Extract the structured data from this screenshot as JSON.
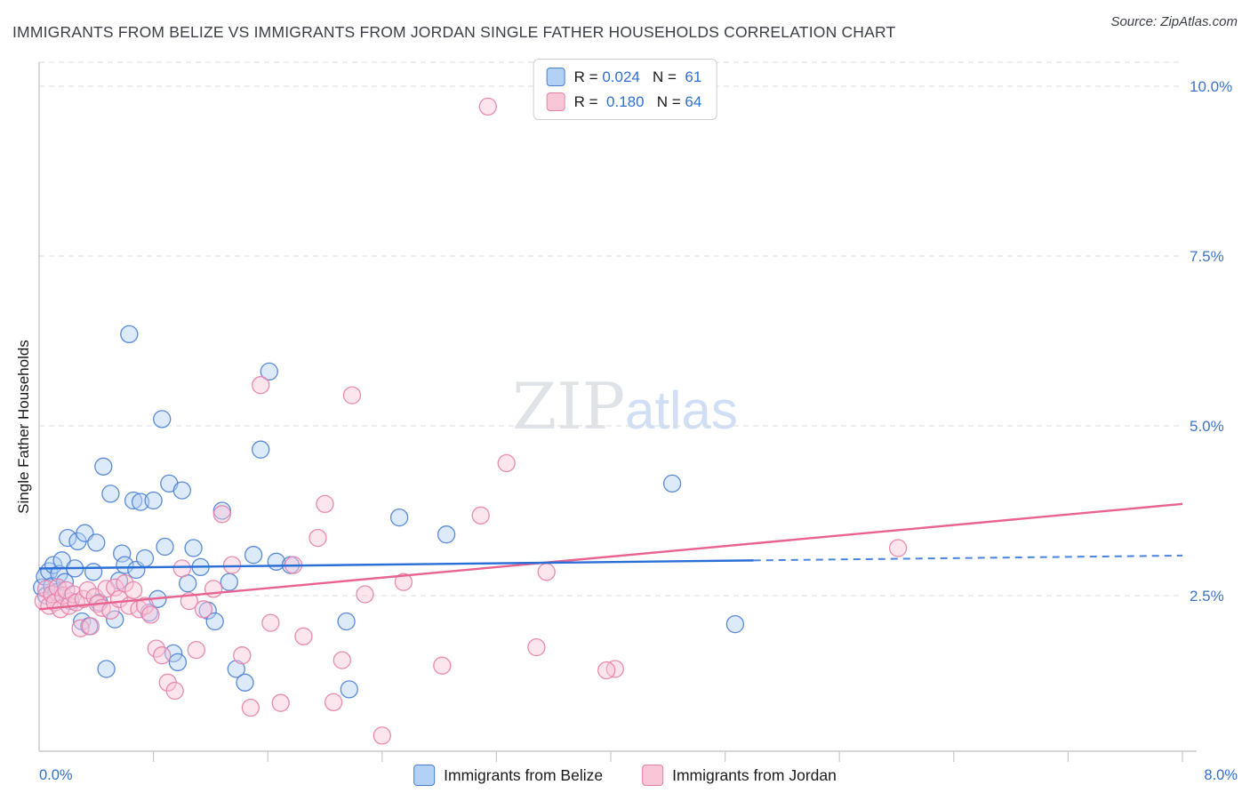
{
  "title": "IMMIGRANTS FROM BELIZE VS IMMIGRANTS FROM JORDAN SINGLE FATHER HOUSEHOLDS CORRELATION CHART",
  "source": "Source: ZipAtlas.com",
  "watermark": {
    "part1": "ZIP",
    "part2": "atlas"
  },
  "legend": {
    "rows": [
      {
        "series": "belize",
        "r_label": "R = ",
        "r_value": "0.024",
        "n_label": "   N = ",
        "n_value": " 61"
      },
      {
        "series": "jordan",
        "r_label": "R = ",
        "r_value": " 0.180",
        "n_label": "   N = ",
        "n_value": "64"
      }
    ]
  },
  "axes": {
    "y_title": "Single Father Households",
    "x_min_label": "0.0%",
    "x_max_label": "8.0%",
    "y_tick_labels": [
      "10.0%",
      "7.5%",
      "5.0%",
      "2.5%"
    ],
    "y_tick_values": [
      10,
      7.5,
      5,
      2.5
    ]
  },
  "bottom_legend": [
    {
      "series": "belize",
      "label": "Immigrants from Belize"
    },
    {
      "series": "jordan",
      "label": "Immigrants from Jordan"
    }
  ],
  "colors": {
    "belize_fill": "#b3d0f5",
    "belize_stroke": "#4a7fd4",
    "jordan_fill": "#f9c6d8",
    "jordan_stroke": "#e87fa8",
    "belize_trend": "#2a6fd6",
    "jordan_trend": "#e8638f",
    "tick_label": "#3d74c7",
    "grid": "#dcdcdc",
    "axis": "#c9c9c9"
  },
  "chart_data": {
    "type": "scatter",
    "title": "IMMIGRANTS FROM BELIZE VS IMMIGRANTS FROM JORDAN SINGLE FATHER HOUSEHOLDS CORRELATION CHART",
    "xlabel": "",
    "ylabel": "Single Father Households",
    "xlim": [
      0,
      8
    ],
    "ylim": [
      0,
      10.5
    ],
    "x_unit": "%",
    "y_unit": "%",
    "gridlines": [
      2.5,
      5,
      7.5,
      10
    ],
    "x_tick_step": 0.8,
    "legend_position": "bottom",
    "series": [
      {
        "name": "Immigrants from Belize",
        "R": 0.024,
        "N": 61,
        "points": [
          [
            0.02,
            2.62
          ],
          [
            0.04,
            2.78
          ],
          [
            0.05,
            2.5
          ],
          [
            0.07,
            2.86
          ],
          [
            0.09,
            2.64
          ],
          [
            0.1,
            2.95
          ],
          [
            0.12,
            2.55
          ],
          [
            0.14,
            2.82
          ],
          [
            0.16,
            3.02
          ],
          [
            0.18,
            2.7
          ],
          [
            0.2,
            3.35
          ],
          [
            0.22,
            2.42
          ],
          [
            0.25,
            2.9
          ],
          [
            0.27,
            3.3
          ],
          [
            0.3,
            2.12
          ],
          [
            0.32,
            3.42
          ],
          [
            0.35,
            2.05
          ],
          [
            0.38,
            2.85
          ],
          [
            0.4,
            3.28
          ],
          [
            0.42,
            2.4
          ],
          [
            0.45,
            4.4
          ],
          [
            0.47,
            1.42
          ],
          [
            0.5,
            4.0
          ],
          [
            0.53,
            2.15
          ],
          [
            0.56,
            2.72
          ],
          [
            0.58,
            3.12
          ],
          [
            0.6,
            2.95
          ],
          [
            0.63,
            6.35
          ],
          [
            0.66,
            3.9
          ],
          [
            0.68,
            2.88
          ],
          [
            0.71,
            3.88
          ],
          [
            0.74,
            3.05
          ],
          [
            0.77,
            2.25
          ],
          [
            0.8,
            3.9
          ],
          [
            0.83,
            2.45
          ],
          [
            0.86,
            5.1
          ],
          [
            0.88,
            3.22
          ],
          [
            0.91,
            4.15
          ],
          [
            0.94,
            1.65
          ],
          [
            0.97,
            1.52
          ],
          [
            1.0,
            4.05
          ],
          [
            1.04,
            2.68
          ],
          [
            1.08,
            3.2
          ],
          [
            1.13,
            2.92
          ],
          [
            1.18,
            2.28
          ],
          [
            1.23,
            2.12
          ],
          [
            1.28,
            3.75
          ],
          [
            1.33,
            2.7
          ],
          [
            1.38,
            1.42
          ],
          [
            1.44,
            1.22
          ],
          [
            1.5,
            3.1
          ],
          [
            1.55,
            4.65
          ],
          [
            1.61,
            5.8
          ],
          [
            1.66,
            3.0
          ],
          [
            1.76,
            2.95
          ],
          [
            4.87,
            2.08
          ],
          [
            2.15,
            2.12
          ],
          [
            2.17,
            1.12
          ],
          [
            2.52,
            3.65
          ],
          [
            2.85,
            3.4
          ],
          [
            4.43,
            4.15
          ]
        ]
      },
      {
        "name": "Immigrants from Jordan",
        "R": 0.18,
        "N": 64,
        "points": [
          [
            0.03,
            2.42
          ],
          [
            0.05,
            2.6
          ],
          [
            0.07,
            2.35
          ],
          [
            0.09,
            2.52
          ],
          [
            0.11,
            2.4
          ],
          [
            0.13,
            2.62
          ],
          [
            0.15,
            2.3
          ],
          [
            0.17,
            2.5
          ],
          [
            0.19,
            2.58
          ],
          [
            0.21,
            2.35
          ],
          [
            0.24,
            2.52
          ],
          [
            0.26,
            2.4
          ],
          [
            0.29,
            2.02
          ],
          [
            0.31,
            2.45
          ],
          [
            0.34,
            2.58
          ],
          [
            0.36,
            2.05
          ],
          [
            0.39,
            2.48
          ],
          [
            0.41,
            2.38
          ],
          [
            0.44,
            2.32
          ],
          [
            0.47,
            2.6
          ],
          [
            0.5,
            2.28
          ],
          [
            0.53,
            2.62
          ],
          [
            0.56,
            2.45
          ],
          [
            0.6,
            2.68
          ],
          [
            0.63,
            2.35
          ],
          [
            0.66,
            2.58
          ],
          [
            0.7,
            2.3
          ],
          [
            0.74,
            2.35
          ],
          [
            0.78,
            2.22
          ],
          [
            0.82,
            1.72
          ],
          [
            0.86,
            1.62
          ],
          [
            0.9,
            1.22
          ],
          [
            0.95,
            1.1
          ],
          [
            1.0,
            2.9
          ],
          [
            1.05,
            2.42
          ],
          [
            1.1,
            1.7
          ],
          [
            1.15,
            2.3
          ],
          [
            1.22,
            2.6
          ],
          [
            1.28,
            3.7
          ],
          [
            1.35,
            2.95
          ],
          [
            1.42,
            1.62
          ],
          [
            1.48,
            0.85
          ],
          [
            1.55,
            5.6
          ],
          [
            1.62,
            2.1
          ],
          [
            1.69,
            0.92
          ],
          [
            1.78,
            2.95
          ],
          [
            1.85,
            1.9
          ],
          [
            1.95,
            3.35
          ],
          [
            2.0,
            3.85
          ],
          [
            2.06,
            0.93
          ],
          [
            2.12,
            1.55
          ],
          [
            2.19,
            5.45
          ],
          [
            2.28,
            2.52
          ],
          [
            2.4,
            0.44
          ],
          [
            2.55,
            2.7
          ],
          [
            2.82,
            1.47
          ],
          [
            3.09,
            3.68
          ],
          [
            3.14,
            9.7
          ],
          [
            3.27,
            4.45
          ],
          [
            3.48,
            1.74
          ],
          [
            3.55,
            2.85
          ],
          [
            4.03,
            1.42
          ],
          [
            3.97,
            1.4
          ],
          [
            6.01,
            3.2
          ]
        ]
      }
    ],
    "trend_lines": [
      {
        "series": "Immigrants from Belize",
        "start": [
          0,
          2.9
        ],
        "end": [
          8,
          3.09
        ],
        "solid_until_x": 5.0,
        "style": "solid-then-dashed"
      },
      {
        "series": "Immigrants from Jordan",
        "start": [
          0,
          2.3
        ],
        "end": [
          8,
          3.85
        ],
        "style": "solid"
      }
    ]
  }
}
